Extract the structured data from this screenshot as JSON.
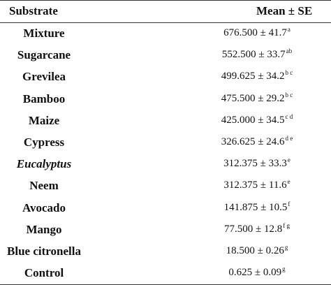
{
  "header": {
    "substrate": "Substrate",
    "mean": "Mean ± SE"
  },
  "rows": [
    {
      "substrate": "Mixture",
      "value": "676.500 ± 41.7",
      "letters": "a",
      "italic": false
    },
    {
      "substrate": "Sugarcane",
      "value": "552.500 ± 33.7",
      "letters": "ab",
      "italic": false
    },
    {
      "substrate": "Grevilea",
      "value": "499.625 ± 34.2",
      "letters": "b c",
      "italic": false
    },
    {
      "substrate": "Bamboo",
      "value": "475.500 ± 29.2",
      "letters": "b c",
      "italic": false
    },
    {
      "substrate": "Maize",
      "value": "425.000 ± 34.5",
      "letters": "c d",
      "italic": false
    },
    {
      "substrate": "Cypress",
      "value": "326.625 ± 24.6",
      "letters": "d e",
      "italic": false
    },
    {
      "substrate": "Eucalyptus",
      "value": "312.375 ± 33.3",
      "letters": "e",
      "italic": true
    },
    {
      "substrate": "Neem",
      "value": "312.375 ± 11.6",
      "letters": "e",
      "italic": false
    },
    {
      "substrate": "Avocado",
      "value": "141.875 ± 10.5",
      "letters": "f",
      "italic": false
    },
    {
      "substrate": "Mango",
      "value": "77.500 ± 12.8",
      "letters": "f g",
      "italic": false
    },
    {
      "substrate": "Blue citronella",
      "value": "18.500 ± 0.26",
      "letters": "g",
      "italic": false
    },
    {
      "substrate": "Control",
      "value": "0.625 ± 0.09",
      "letters": "g",
      "italic": false
    }
  ]
}
